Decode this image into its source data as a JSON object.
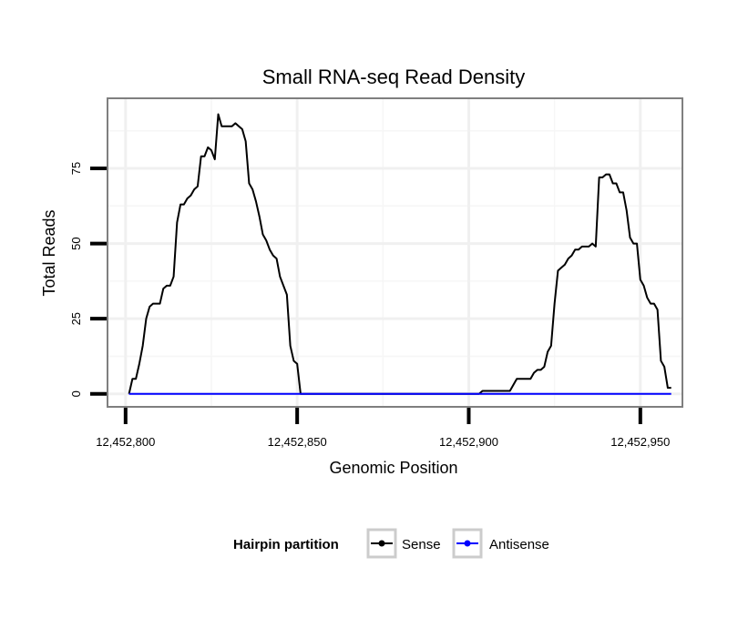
{
  "chart_data": {
    "type": "line",
    "title": "Small RNA-seq Read Density",
    "xlabel": "Genomic Position",
    "ylabel": "Total Reads",
    "xlim": [
      12452795,
      12452962
    ],
    "ylim": [
      -4,
      98
    ],
    "x_ticks": [
      12452800,
      12452850,
      12452900,
      12452950
    ],
    "x_tick_labels": [
      "12,452,800",
      "12,452,850",
      "12,452,900",
      "12,452,950"
    ],
    "y_ticks": [
      0,
      25,
      50,
      75
    ],
    "y_tick_labels": [
      "0",
      "25",
      "50",
      "75"
    ],
    "grid": true,
    "legend": {
      "title": "Hairpin partition",
      "position": "bottom",
      "entries": [
        {
          "label": "Sense",
          "color": "#000000"
        },
        {
          "label": "Antisense",
          "color": "#0000ff"
        }
      ]
    },
    "series": [
      {
        "name": "Sense",
        "color": "#000000",
        "points": [
          [
            12452801,
            0
          ],
          [
            12452802,
            5
          ],
          [
            12452803,
            5
          ],
          [
            12452804,
            10
          ],
          [
            12452805,
            16
          ],
          [
            12452806,
            25
          ],
          [
            12452807,
            29
          ],
          [
            12452808,
            30
          ],
          [
            12452809,
            30
          ],
          [
            12452810,
            30
          ],
          [
            12452811,
            35
          ],
          [
            12452812,
            36
          ],
          [
            12452813,
            36
          ],
          [
            12452814,
            39
          ],
          [
            12452815,
            57
          ],
          [
            12452816,
            63
          ],
          [
            12452817,
            63
          ],
          [
            12452818,
            65
          ],
          [
            12452819,
            66
          ],
          [
            12452820,
            68
          ],
          [
            12452821,
            69
          ],
          [
            12452822,
            79
          ],
          [
            12452823,
            79
          ],
          [
            12452824,
            82
          ],
          [
            12452825,
            81
          ],
          [
            12452826,
            78
          ],
          [
            12452827,
            93
          ],
          [
            12452828,
            89
          ],
          [
            12452829,
            89
          ],
          [
            12452830,
            89
          ],
          [
            12452831,
            89
          ],
          [
            12452832,
            90
          ],
          [
            12452833,
            89
          ],
          [
            12452834,
            88
          ],
          [
            12452835,
            84
          ],
          [
            12452836,
            70
          ],
          [
            12452837,
            68
          ],
          [
            12452838,
            64
          ],
          [
            12452839,
            59
          ],
          [
            12452840,
            53
          ],
          [
            12452841,
            51
          ],
          [
            12452842,
            48
          ],
          [
            12452843,
            46
          ],
          [
            12452844,
            45
          ],
          [
            12452845,
            39
          ],
          [
            12452846,
            36
          ],
          [
            12452847,
            33
          ],
          [
            12452848,
            16
          ],
          [
            12452849,
            11
          ],
          [
            12452850,
            10
          ],
          [
            12452851,
            0
          ],
          [
            12452903,
            0
          ],
          [
            12452904,
            1
          ],
          [
            12452905,
            1
          ],
          [
            12452906,
            1
          ],
          [
            12452907,
            1
          ],
          [
            12452908,
            1
          ],
          [
            12452909,
            1
          ],
          [
            12452910,
            1
          ],
          [
            12452911,
            1
          ],
          [
            12452912,
            1
          ],
          [
            12452913,
            3
          ],
          [
            12452914,
            5
          ],
          [
            12452915,
            5
          ],
          [
            12452916,
            5
          ],
          [
            12452917,
            5
          ],
          [
            12452918,
            5
          ],
          [
            12452919,
            7
          ],
          [
            12452920,
            8
          ],
          [
            12452921,
            8
          ],
          [
            12452922,
            9
          ],
          [
            12452923,
            14
          ],
          [
            12452924,
            16
          ],
          [
            12452925,
            30
          ],
          [
            12452926,
            41
          ],
          [
            12452927,
            42
          ],
          [
            12452928,
            43
          ],
          [
            12452929,
            45
          ],
          [
            12452930,
            46
          ],
          [
            12452931,
            48
          ],
          [
            12452932,
            48
          ],
          [
            12452933,
            49
          ],
          [
            12452934,
            49
          ],
          [
            12452935,
            49
          ],
          [
            12452936,
            50
          ],
          [
            12452937,
            49
          ],
          [
            12452938,
            72
          ],
          [
            12452939,
            72
          ],
          [
            12452940,
            73
          ],
          [
            12452941,
            73
          ],
          [
            12452942,
            70
          ],
          [
            12452943,
            70
          ],
          [
            12452944,
            67
          ],
          [
            12452945,
            67
          ],
          [
            12452946,
            61
          ],
          [
            12452947,
            52
          ],
          [
            12452948,
            50
          ],
          [
            12452949,
            50
          ],
          [
            12452950,
            38
          ],
          [
            12452951,
            36
          ],
          [
            12452952,
            32
          ],
          [
            12452953,
            30
          ],
          [
            12452954,
            30
          ],
          [
            12452955,
            28
          ],
          [
            12452956,
            11
          ],
          [
            12452957,
            9
          ],
          [
            12452958,
            2
          ],
          [
            12452959,
            2
          ]
        ]
      },
      {
        "name": "Antisense",
        "color": "#0000ff",
        "points": [
          [
            12452801,
            0
          ],
          [
            12452959,
            0
          ]
        ]
      }
    ]
  }
}
